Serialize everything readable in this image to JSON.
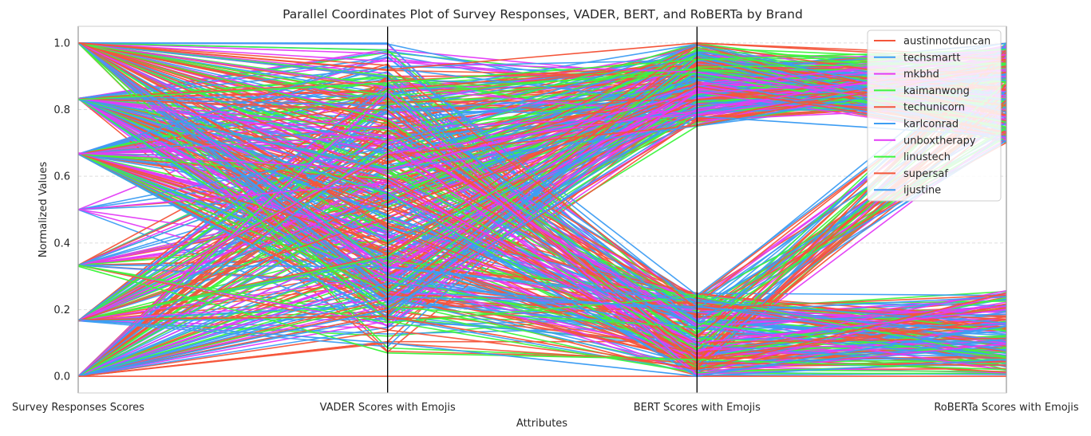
{
  "chart_data": {
    "type": "parallel_coordinates",
    "title": "Parallel Coordinates Plot of Survey Responses, VADER, BERT, and RoBERTa by Brand",
    "xlabel": "Attributes",
    "ylabel": "Normalized Values",
    "ylim": [
      -0.05,
      1.05
    ],
    "yticks": [
      "0.0",
      "0.2",
      "0.4",
      "0.6",
      "0.8",
      "1.0"
    ],
    "ytick_values": [
      0.0,
      0.2,
      0.4,
      0.6,
      0.8,
      1.0
    ],
    "axes": [
      "Survey Responses Scores",
      "VADER Scores with Emojis",
      "BERT Scores with Emojis",
      "RoBERTa Scores with Emojis"
    ],
    "grid": true,
    "legend_position": "top-right",
    "series": [
      {
        "name": "austinnotduncan",
        "color": "#f4553a"
      },
      {
        "name": "techsmartt",
        "color": "#3d9df3"
      },
      {
        "name": "mkbhd",
        "color": "#e43bf7"
      },
      {
        "name": "kaimanwong",
        "color": "#3df53d"
      },
      {
        "name": "techunicorn",
        "color": "#f4553a"
      },
      {
        "name": "karlconrad",
        "color": "#3d9df3"
      },
      {
        "name": "unboxtherapy",
        "color": "#e43bf7"
      },
      {
        "name": "linustech",
        "color": "#3df53d"
      },
      {
        "name": "supersaf",
        "color": "#f4553a"
      },
      {
        "name": "ijustine",
        "color": "#3d9df3"
      }
    ],
    "sample_lines": [
      {
        "series": 0,
        "values": [
          1.0,
          0.92,
          1.0,
          0.95
        ]
      },
      {
        "series": 1,
        "values": [
          0.83,
          0.55,
          0.0,
          0.05
        ]
      },
      {
        "series": 2,
        "values": [
          0.67,
          0.62,
          0.85,
          0.9
        ]
      },
      {
        "series": 3,
        "values": [
          0.33,
          0.07,
          0.05,
          0.02
        ]
      },
      {
        "series": 4,
        "values": [
          0.17,
          0.18,
          0.02,
          0.25
        ]
      },
      {
        "series": 5,
        "values": [
          0.0,
          0.2,
          0.78,
          0.72
        ]
      },
      {
        "series": 6,
        "values": [
          0.5,
          0.58,
          0.1,
          0.2
        ]
      },
      {
        "series": 7,
        "values": [
          0.83,
          0.88,
          0.95,
          0.98
        ]
      },
      {
        "series": 8,
        "values": [
          0.0,
          0.0,
          0.0,
          0.0
        ]
      },
      {
        "series": 9,
        "values": [
          0.17,
          0.1,
          0.0,
          0.15
        ]
      }
    ]
  }
}
